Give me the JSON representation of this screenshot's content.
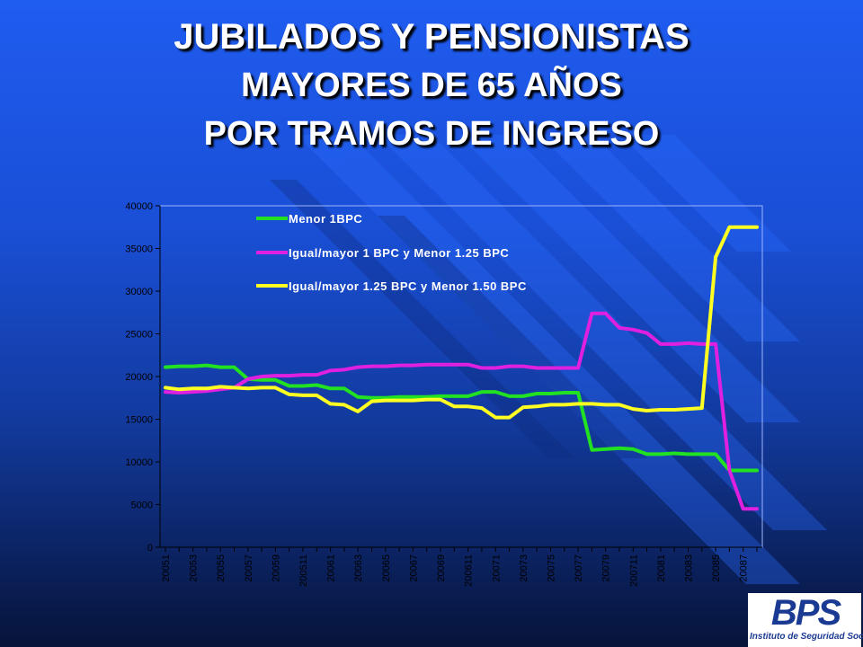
{
  "title": {
    "line1": "JUBILADOS Y PENSIONISTAS",
    "line2": "MAYORES DE 65 AÑOS",
    "line3": "POR TRAMOS DE INGRESO"
  },
  "logo": {
    "mark": "BPS",
    "subtitle": "Instituto de Seguridad Social"
  },
  "chart_data": {
    "type": "line",
    "title": "",
    "xlabel": "",
    "ylabel": "",
    "ylim": [
      0,
      40000
    ],
    "yticks": [
      0,
      5000,
      10000,
      15000,
      20000,
      25000,
      30000,
      35000,
      40000
    ],
    "grid": false,
    "legend_position": "top-left",
    "x": [
      "20051",
      "20052",
      "20053",
      "20054",
      "20055",
      "20056",
      "20057",
      "20058",
      "20059",
      "200510",
      "200511",
      "200512",
      "20061",
      "20062",
      "20063",
      "20064",
      "20065",
      "20066",
      "20067",
      "20068",
      "20069",
      "200610",
      "200611",
      "200612",
      "20071",
      "20072",
      "20073",
      "20074",
      "20075",
      "20076",
      "20077",
      "20078",
      "20079",
      "200710",
      "200711",
      "200712",
      "20081",
      "20082",
      "20083",
      "20084",
      "20085",
      "20086",
      "20087",
      "20088"
    ],
    "x_tick_labels": [
      "20051",
      "20053",
      "20055",
      "20057",
      "20059",
      "200511",
      "20061",
      "20063",
      "20065",
      "20067",
      "20069",
      "200611",
      "20071",
      "20073",
      "20075",
      "20077",
      "20079",
      "200711",
      "20081",
      "20083",
      "20085",
      "20087"
    ],
    "series": [
      {
        "name": "Menor 1BPC",
        "color": "#22e022",
        "values": [
          21100,
          21200,
          21200,
          21300,
          21100,
          21100,
          19700,
          19600,
          19600,
          18900,
          18900,
          19000,
          18600,
          18600,
          17600,
          17500,
          17500,
          17600,
          17600,
          17600,
          17700,
          17700,
          17700,
          18200,
          18200,
          17700,
          17700,
          18000,
          18000,
          18100,
          18100,
          11400,
          11500,
          11600,
          11500,
          10900,
          10900,
          11000,
          10900,
          10900,
          10900,
          9000,
          9000,
          9000
        ]
      },
      {
        "name": "Igual/mayor 1 BPC y Menor 1.25 BPC",
        "color": "#e020e0",
        "values": [
          18200,
          18100,
          18200,
          18300,
          18500,
          18700,
          19700,
          20000,
          20100,
          20100,
          20200,
          20200,
          20700,
          20800,
          21100,
          21200,
          21200,
          21300,
          21300,
          21400,
          21400,
          21400,
          21400,
          21000,
          21000,
          21200,
          21200,
          21000,
          21000,
          21000,
          21000,
          27400,
          27400,
          25700,
          25500,
          25100,
          23800,
          23800,
          23900,
          23800,
          23800,
          9000,
          4500,
          4500
        ]
      },
      {
        "name": "Igual/mayor 1.25 BPC y Menor 1.50 BPC",
        "color": "#ffff22",
        "values": [
          18700,
          18500,
          18600,
          18600,
          18800,
          18700,
          18600,
          18700,
          18700,
          17900,
          17800,
          17800,
          16800,
          16700,
          15900,
          17100,
          17200,
          17200,
          17200,
          17300,
          17300,
          16500,
          16500,
          16300,
          15200,
          15200,
          16400,
          16500,
          16700,
          16700,
          16800,
          16800,
          16700,
          16700,
          16200,
          16000,
          16100,
          16100,
          16200,
          16300,
          34000,
          37500,
          37500,
          37500
        ]
      }
    ]
  }
}
